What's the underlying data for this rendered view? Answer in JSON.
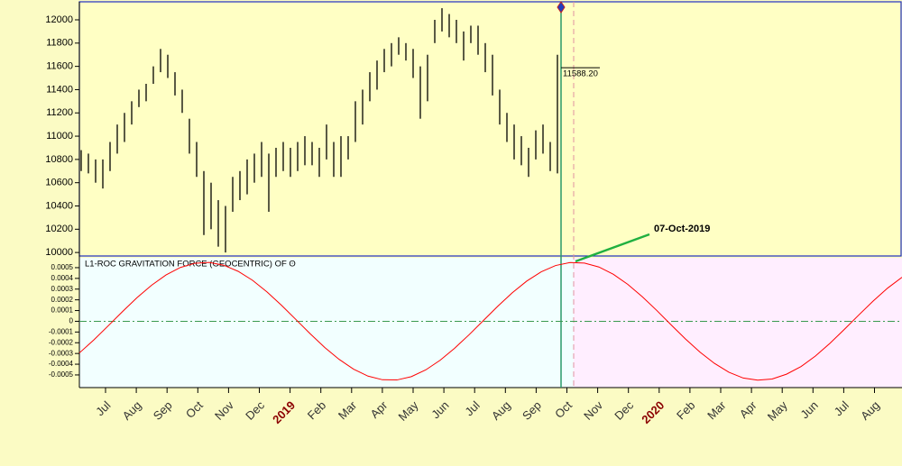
{
  "chart_data": [
    {
      "type": "range",
      "name": "price",
      "high": [
        10880,
        10850,
        10800,
        10800,
        10950,
        11100,
        11200,
        11300,
        11400,
        11450,
        11600,
        11750,
        11700,
        11550,
        11400,
        11150,
        10950,
        10700,
        10600,
        10450,
        10400,
        10650,
        10700,
        10800,
        10850,
        10950,
        10850,
        10900,
        10950,
        10900,
        10950,
        11000,
        10950,
        10900,
        11100,
        10950,
        11000,
        11000,
        11300,
        11400,
        11550,
        11650,
        11750,
        11800,
        11850,
        11800,
        11750,
        11600,
        11700,
        12000,
        12100,
        12050,
        12000,
        11900,
        11950,
        11950,
        11800,
        11700,
        11400,
        11200,
        11100,
        11000,
        10900,
        11050,
        11100,
        10950,
        11700
      ],
      "low": [
        10700,
        10680,
        10600,
        10550,
        10700,
        10850,
        10950,
        11100,
        11250,
        11300,
        11450,
        11550,
        11500,
        11350,
        11200,
        10850,
        10650,
        10150,
        10200,
        10050,
        10000,
        10350,
        10450,
        10500,
        10600,
        10650,
        10350,
        10650,
        10700,
        10650,
        10700,
        10750,
        10750,
        10650,
        10800,
        10650,
        10650,
        10800,
        10950,
        11100,
        11300,
        11400,
        11550,
        11600,
        11700,
        11650,
        11500,
        11150,
        11300,
        11800,
        11900,
        11850,
        11800,
        11650,
        11800,
        11700,
        11550,
        11350,
        11100,
        10950,
        10800,
        10750,
        10650,
        10800,
        10850,
        10700,
        10680
      ],
      "color": "#000000",
      "ylim": [
        9970,
        12155
      ],
      "yticks": [
        10000,
        10200,
        10400,
        10600,
        10800,
        11000,
        11200,
        11400,
        11600,
        11800,
        12000
      ],
      "last_price": {
        "value": 11588.2,
        "label": "11588.20"
      }
    },
    {
      "type": "line",
      "name": "oscillator",
      "title": "L1-ROC GRAVITATION FORCE (GEOCENTRIC) OF ʘ",
      "values": [
        -0.000295,
        -0.000174,
        -4.2e-05,
        9.2e-05,
        0.000221,
        0.000336,
        0.000432,
        0.000502,
        0.000541,
        0.000549,
        0.000523,
        0.000466,
        0.000382,
        0.000274,
        0.00015,
        1.7e-05,
        -0.000117,
        -0.000244,
        -0.000355,
        -0.000446,
        -0.000511,
        -0.000545,
        -0.000547,
        -0.000516,
        -0.000453,
        -0.000363,
        -0.000251,
        -0.000126,
        8e-06,
        0.000141,
        0.000266,
        0.000375,
        0.000461,
        0.00052,
        0.000548,
        0.000543,
        0.000506,
        0.000438,
        0.000344,
        0.00023,
        0.000102,
        -3.3e-05,
        -0.000165,
        -0.000287,
        -0.000392,
        -0.000475,
        -0.000529,
        -0.000549,
        -0.000538,
        -0.000493,
        -0.000422,
        -0.000324,
        -0.000206,
        -7.6e-05,
        5.8e-05,
        0.000189,
        0.000309,
        0.00041
      ],
      "color": "#ff0000",
      "ylim": [
        -0.000618,
        0.000592
      ],
      "yticks": [
        0.0005,
        0.0004,
        0.0003,
        0.0002,
        0.0001,
        0,
        -0.0001,
        -0.0002,
        -0.0003,
        -0.0004,
        -0.0005
      ],
      "annotation": "07-Oct-2019",
      "x_axis_labels": [
        "Jul",
        "Aug",
        "Sep",
        "Oct",
        "Nov",
        "Dec",
        "2019",
        "Feb",
        "Mar",
        "Apr",
        "May",
        "Jun",
        "Jul",
        "Aug",
        "Sep",
        "Oct",
        "Nov",
        "Dec",
        "2020",
        "Feb",
        "Mar",
        "Apr",
        "May",
        "Jun",
        "Jul",
        "Aug"
      ]
    }
  ]
}
